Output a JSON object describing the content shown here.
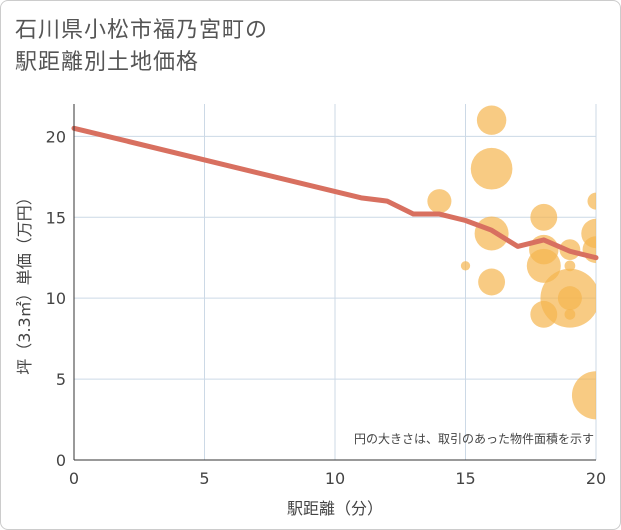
{
  "title_line1": "石川県小松市福乃宮町の",
  "title_line2": "駅距離別土地価格",
  "chart_data": {
    "type": "scatter",
    "title": "石川県小松市福乃宮町の駅距離別土地価格",
    "xlabel": "駅距離（分）",
    "ylabel": "坪（3.3㎡）単価（万円）",
    "xlim": [
      0,
      20
    ],
    "ylim": [
      0,
      22
    ],
    "xticks": [
      0,
      5,
      10,
      15,
      20
    ],
    "yticks": [
      0,
      5,
      10,
      15,
      20
    ],
    "grid": true,
    "note": "円の大きさは、取引のあった物件面積を示す",
    "colors": {
      "bubble": "#f5b54e",
      "line": "#d87060",
      "grid": "#ccd9e6",
      "axis": "#333333"
    },
    "bubbles": [
      {
        "x": 14,
        "y": 16,
        "size": 2
      },
      {
        "x": 15,
        "y": 12,
        "size": 0.3
      },
      {
        "x": 16,
        "y": 21,
        "size": 3
      },
      {
        "x": 16,
        "y": 18,
        "size": 6
      },
      {
        "x": 16,
        "y": 14,
        "size": 4
      },
      {
        "x": 16,
        "y": 11,
        "size": 2.5
      },
      {
        "x": 18,
        "y": 15,
        "size": 2.5
      },
      {
        "x": 18,
        "y": 13,
        "size": 3
      },
      {
        "x": 18,
        "y": 12,
        "size": 4
      },
      {
        "x": 18,
        "y": 9,
        "size": 2.5
      },
      {
        "x": 19,
        "y": 13,
        "size": 1.5
      },
      {
        "x": 19,
        "y": 12,
        "size": 0.4
      },
      {
        "x": 19,
        "y": 10,
        "size": 12
      },
      {
        "x": 19,
        "y": 10,
        "size": 2
      },
      {
        "x": 19,
        "y": 9,
        "size": 0.4
      },
      {
        "x": 20,
        "y": 16,
        "size": 1
      },
      {
        "x": 20,
        "y": 14,
        "size": 3
      },
      {
        "x": 20,
        "y": 13,
        "size": 2.5
      },
      {
        "x": 20,
        "y": 4,
        "size": 8
      }
    ],
    "trend_line": {
      "x": [
        0,
        11,
        12,
        13,
        14,
        15,
        16,
        17,
        18,
        19,
        20
      ],
      "y": [
        20.5,
        16.2,
        16.0,
        15.2,
        15.2,
        14.8,
        14.2,
        13.2,
        13.6,
        12.9,
        12.5
      ]
    }
  }
}
